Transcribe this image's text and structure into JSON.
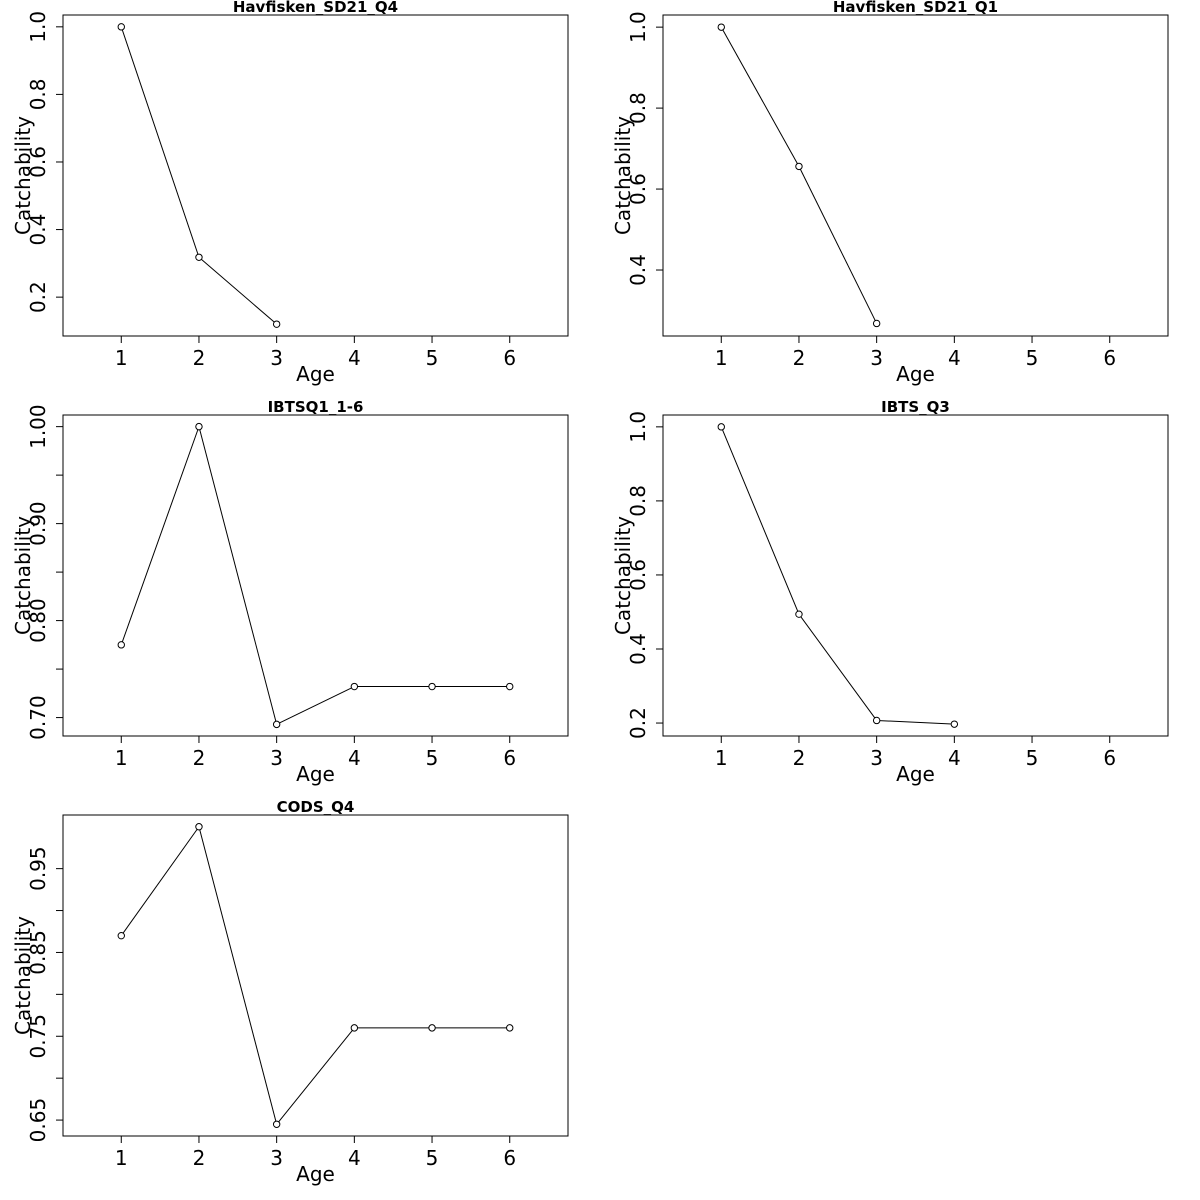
{
  "figure": {
    "layout": "3 rows x 2 columns"
  },
  "colors": {
    "line": "#000000",
    "point_fill": "#ffffff",
    "frame": "#000000"
  },
  "chart_data": [
    {
      "type": "line",
      "title": "Havfisken_SD21_Q4",
      "xlabel": "Age",
      "ylabel": "Catchability",
      "x": [
        1,
        2,
        3
      ],
      "y": [
        1.0,
        0.318,
        0.12
      ],
      "xlim": [
        0.25,
        6.75
      ],
      "ylim": [
        0.085,
        1.035
      ],
      "xticks": [
        1,
        2,
        3,
        4,
        5,
        6
      ],
      "yticks": [
        0.2,
        0.4,
        0.6,
        0.8,
        1.0
      ],
      "yticklabels": [
        "0.2",
        "0.4",
        "0.6",
        "0.8",
        "1.0"
      ],
      "grid": false,
      "legend": "none"
    },
    {
      "type": "line",
      "title": "Havfisken_SD21_Q1",
      "xlabel": "Age",
      "ylabel": "Catchability",
      "x": [
        1,
        2,
        3
      ],
      "y": [
        1.0,
        0.656,
        0.268
      ],
      "xlim": [
        0.25,
        6.75
      ],
      "ylim": [
        0.237,
        1.03
      ],
      "xticks": [
        1,
        2,
        3,
        4,
        5,
        6
      ],
      "yticks": [
        0.4,
        0.6,
        0.8,
        1.0
      ],
      "yticklabels": [
        "0.4",
        "0.6",
        "0.8",
        "1.0"
      ],
      "grid": false,
      "legend": "none"
    },
    {
      "type": "line",
      "title": "IBTSQ1_1-6",
      "xlabel": "Age",
      "ylabel": "Catchability",
      "x": [
        1,
        2,
        3,
        4,
        5,
        6
      ],
      "y": [
        0.775,
        1.0,
        0.693,
        0.732,
        0.732,
        0.732
      ],
      "xlim": [
        0.25,
        6.75
      ],
      "ylim": [
        0.681,
        1.012
      ],
      "xticks": [
        1,
        2,
        3,
        4,
        5,
        6
      ],
      "yticks": [
        0.7,
        0.75,
        0.8,
        0.85,
        0.9,
        0.95,
        1.0
      ],
      "yticklabels": [
        "0.70",
        "",
        "0.80",
        "",
        "0.90",
        "",
        "1.00"
      ],
      "grid": false,
      "legend": "none"
    },
    {
      "type": "line",
      "title": "IBTS_Q3",
      "xlabel": "Age",
      "ylabel": "Catchability",
      "x": [
        1,
        2,
        3,
        4
      ],
      "y": [
        1.0,
        0.494,
        0.207,
        0.197
      ],
      "xlim": [
        0.25,
        6.75
      ],
      "ylim": [
        0.165,
        1.032
      ],
      "xticks": [
        1,
        2,
        3,
        4,
        5,
        6
      ],
      "yticks": [
        0.2,
        0.4,
        0.6,
        0.8,
        1.0
      ],
      "yticklabels": [
        "0.2",
        "0.4",
        "0.6",
        "0.8",
        "1.0"
      ],
      "grid": false,
      "legend": "none"
    },
    {
      "type": "line",
      "title": "CODS_Q4",
      "xlabel": "Age",
      "ylabel": "Catchability",
      "x": [
        1,
        2,
        3,
        4,
        5,
        6
      ],
      "y": [
        0.87,
        1.0,
        0.645,
        0.76,
        0.76,
        0.76
      ],
      "xlim": [
        0.25,
        6.75
      ],
      "ylim": [
        0.631,
        1.014
      ],
      "xticks": [
        1,
        2,
        3,
        4,
        5,
        6
      ],
      "yticks": [
        0.65,
        0.7,
        0.75,
        0.8,
        0.85,
        0.9,
        0.95
      ],
      "yticklabels": [
        "0.65",
        "",
        "0.75",
        "",
        "0.85",
        "",
        "0.95"
      ],
      "grid": false,
      "legend": "none"
    }
  ]
}
